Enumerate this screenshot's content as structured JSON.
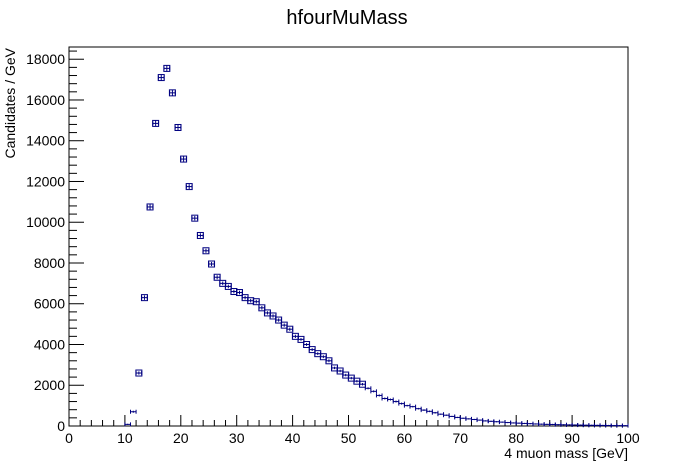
{
  "chart_data": {
    "type": "scatter",
    "title": "hfourMuMass",
    "xlabel": "4 muon mass [GeV]",
    "ylabel": "Candidates / GeV",
    "xlim": [
      0,
      100
    ],
    "ylim": [
      0,
      18600
    ],
    "x_ticks": [
      0,
      10,
      20,
      30,
      40,
      50,
      60,
      70,
      80,
      90,
      100
    ],
    "y_ticks": [
      0,
      2000,
      4000,
      6000,
      8000,
      10000,
      12000,
      14000,
      16000,
      18000
    ],
    "grid": false,
    "legend": "none",
    "marker_color": "#000080",
    "series": [
      {
        "x": [
          10.5,
          11.5,
          12.5,
          13.5,
          14.5,
          15.5,
          16.5,
          17.5,
          18.5,
          19.5,
          20.5,
          21.5,
          22.5,
          23.5,
          24.5,
          25.5,
          26.5,
          27.5,
          28.5,
          29.5,
          30.5,
          31.5,
          32.5,
          33.5,
          34.5,
          35.5,
          36.5,
          37.5,
          38.5,
          39.5,
          40.5,
          41.5,
          42.5,
          43.5,
          44.5,
          45.5,
          46.5,
          47.5,
          48.5,
          49.5,
          50.5,
          51.5,
          52.5,
          53.5,
          54.5,
          55.5,
          56.5,
          57.5,
          58.5,
          59.5,
          60.5,
          61.5,
          62.5,
          63.5,
          64.5,
          65.5,
          66.5,
          67.5,
          68.5,
          69.5,
          70.5,
          71.5,
          72.5,
          73.5,
          74.5,
          75.5,
          76.5,
          77.5,
          78.5,
          79.5,
          80.5,
          81.5,
          82.5,
          83.5,
          84.5,
          85.5,
          86.5,
          87.5,
          88.5,
          89.5,
          90.5,
          91.5,
          92.5,
          93.5,
          94.5,
          95.5,
          96.5,
          97.5,
          98.5,
          99.5
        ],
        "y": [
          80,
          700,
          2600,
          6300,
          10750,
          14850,
          17100,
          17550,
          16350,
          14650,
          13100,
          11750,
          10200,
          9350,
          8600,
          7950,
          7300,
          7000,
          6850,
          6600,
          6550,
          6300,
          6150,
          6100,
          5800,
          5550,
          5400,
          5200,
          4950,
          4750,
          4400,
          4250,
          4000,
          3750,
          3550,
          3400,
          3200,
          2850,
          2700,
          2500,
          2350,
          2200,
          2050,
          1850,
          1700,
          1500,
          1350,
          1300,
          1200,
          1100,
          1000,
          950,
          850,
          780,
          720,
          650,
          580,
          530,
          470,
          420,
          380,
          350,
          320,
          290,
          250,
          230,
          210,
          190,
          170,
          150,
          140,
          125,
          115,
          100,
          90,
          80,
          75,
          65,
          60,
          55,
          50,
          45,
          40,
          35,
          32,
          28,
          25,
          22,
          20,
          18
        ],
        "y_err": [
          30,
          50,
          80,
          110,
          130,
          150,
          160,
          160,
          150,
          140,
          130,
          120,
          110,
          110,
          100,
          100,
          100,
          90,
          90,
          90,
          90,
          90,
          90,
          90,
          90,
          80,
          80,
          80,
          80,
          80,
          80,
          70,
          70,
          70,
          70,
          70,
          70,
          60,
          60,
          60,
          60,
          60,
          60,
          50,
          50,
          50,
          50,
          50,
          50,
          50,
          40,
          40,
          40,
          40,
          40,
          40,
          30,
          30,
          30,
          30,
          30,
          30,
          30,
          30,
          30,
          30,
          30,
          30,
          30,
          30,
          30,
          30,
          30,
          30,
          30,
          30,
          30,
          30,
          30,
          30,
          30,
          30,
          30,
          30,
          30,
          30,
          30,
          30,
          30,
          30
        ]
      }
    ]
  }
}
